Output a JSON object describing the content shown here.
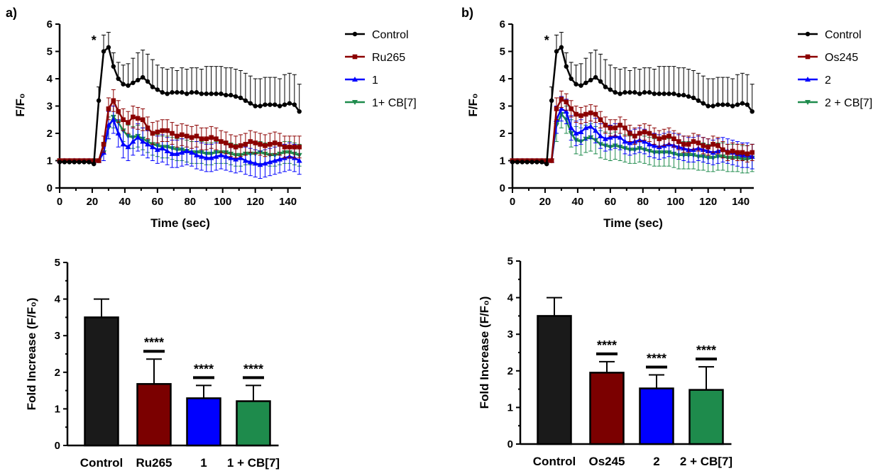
{
  "panels": {
    "a": "a)",
    "b": "b)"
  },
  "chart_data": [
    {
      "type": "line",
      "xlabel": "Time (sec)",
      "ylabel": "F/F₀",
      "xlim": [
        0,
        148
      ],
      "ylim": [
        0,
        6
      ],
      "xticks": [
        "0",
        "20",
        "40",
        "60",
        "80",
        "100",
        "120",
        "140"
      ],
      "yticks": [
        "0",
        "1",
        "2",
        "3",
        "4",
        "5",
        "6"
      ],
      "annotation": {
        "text": "*",
        "x": 21,
        "y": 5.4
      },
      "legend_position": "top-right",
      "x": [
        0,
        3,
        6,
        9,
        12,
        15,
        18,
        21,
        24,
        27,
        30,
        33,
        36,
        39,
        42,
        45,
        48,
        51,
        54,
        57,
        60,
        63,
        66,
        69,
        72,
        75,
        78,
        81,
        84,
        87,
        90,
        93,
        96,
        99,
        102,
        105,
        108,
        111,
        114,
        117,
        120,
        123,
        126,
        129,
        132,
        135,
        138,
        141,
        144,
        147
      ],
      "series": [
        {
          "name": "Control",
          "color": "#000000",
          "marker": "circle",
          "values": [
            0.95,
            0.95,
            0.95,
            0.95,
            0.95,
            0.95,
            0.95,
            0.88,
            3.2,
            5.0,
            5.15,
            4.45,
            4.0,
            3.8,
            3.75,
            3.85,
            3.95,
            4.05,
            3.9,
            3.7,
            3.6,
            3.5,
            3.45,
            3.5,
            3.5,
            3.5,
            3.45,
            3.5,
            3.5,
            3.45,
            3.45,
            3.45,
            3.45,
            3.45,
            3.4,
            3.4,
            3.35,
            3.3,
            3.2,
            3.1,
            3.0,
            3.0,
            3.05,
            3.05,
            3.05,
            3.0,
            3.05,
            3.1,
            3.05,
            2.8
          ],
          "errors": [
            0.1,
            0.1,
            0.1,
            0.1,
            0.1,
            0.1,
            0.1,
            0.1,
            0.5,
            0.6,
            0.55,
            0.5,
            0.6,
            0.7,
            0.8,
            0.9,
            1.0,
            1.0,
            1.0,
            1.0,
            0.9,
            0.9,
            0.9,
            0.9,
            0.8,
            0.9,
            0.9,
            0.9,
            0.9,
            0.9,
            1.0,
            1.0,
            1.0,
            1.0,
            1.0,
            1.0,
            1.0,
            1.0,
            1.0,
            1.0,
            1.0,
            1.0,
            1.0,
            1.0,
            1.0,
            1.0,
            1.1,
            1.1,
            1.1,
            1.0
          ]
        },
        {
          "name": "Ru265",
          "color": "#8B0000",
          "marker": "square",
          "values": [
            1.0,
            1.0,
            1.0,
            1.0,
            1.0,
            1.0,
            1.0,
            1.0,
            1.0,
            1.6,
            2.9,
            3.2,
            2.8,
            2.5,
            2.4,
            2.6,
            2.55,
            2.5,
            2.2,
            2.0,
            2.05,
            2.1,
            2.1,
            2.0,
            1.9,
            1.95,
            1.9,
            1.85,
            1.9,
            1.8,
            1.8,
            1.85,
            1.8,
            1.7,
            1.65,
            1.55,
            1.5,
            1.55,
            1.6,
            1.7,
            1.65,
            1.6,
            1.55,
            1.6,
            1.65,
            1.6,
            1.5,
            1.5,
            1.5,
            1.5
          ],
          "errors": [
            0.05,
            0.05,
            0.05,
            0.05,
            0.05,
            0.05,
            0.05,
            0.05,
            0.1,
            0.3,
            0.4,
            0.4,
            0.4,
            0.4,
            0.4,
            0.4,
            0.4,
            0.4,
            0.4,
            0.4,
            0.4,
            0.4,
            0.4,
            0.4,
            0.4,
            0.4,
            0.4,
            0.4,
            0.4,
            0.4,
            0.4,
            0.4,
            0.4,
            0.4,
            0.4,
            0.4,
            0.4,
            0.4,
            0.4,
            0.4,
            0.4,
            0.4,
            0.4,
            0.4,
            0.4,
            0.4,
            0.4,
            0.4,
            0.4,
            0.4
          ]
        },
        {
          "name": "1",
          "color": "#0000FF",
          "marker": "triangle-up",
          "values": [
            1.0,
            1.0,
            1.0,
            1.0,
            1.0,
            1.0,
            1.0,
            1.0,
            1.0,
            1.3,
            2.3,
            2.5,
            2.0,
            1.6,
            1.5,
            1.7,
            1.85,
            1.7,
            1.6,
            1.5,
            1.4,
            1.45,
            1.35,
            1.25,
            1.25,
            1.3,
            1.35,
            1.3,
            1.2,
            1.15,
            1.1,
            1.1,
            1.15,
            1.2,
            1.15,
            1.1,
            1.05,
            1.1,
            1.0,
            0.95,
            0.9,
            0.85,
            0.9,
            0.95,
            1.0,
            1.05,
            1.1,
            1.15,
            1.1,
            1.0
          ],
          "errors": [
            0.05,
            0.05,
            0.05,
            0.05,
            0.05,
            0.05,
            0.05,
            0.05,
            0.1,
            0.3,
            0.5,
            0.5,
            0.5,
            0.5,
            0.5,
            0.5,
            0.5,
            0.5,
            0.5,
            0.5,
            0.5,
            0.5,
            0.5,
            0.5,
            0.5,
            0.5,
            0.5,
            0.5,
            0.5,
            0.5,
            0.5,
            0.5,
            0.5,
            0.5,
            0.5,
            0.5,
            0.5,
            0.5,
            0.5,
            0.5,
            0.5,
            0.5,
            0.5,
            0.5,
            0.5,
            0.5,
            0.5,
            0.5,
            0.5,
            0.5
          ]
        },
        {
          "name": "1+ CB[7]",
          "color": "#1E8B4C",
          "marker": "triangle-down",
          "values": [
            1.0,
            1.0,
            1.0,
            1.0,
            1.0,
            1.0,
            1.0,
            1.0,
            1.0,
            1.3,
            2.2,
            2.6,
            2.4,
            2.1,
            1.9,
            1.85,
            1.9,
            1.8,
            1.7,
            1.6,
            1.55,
            1.5,
            1.5,
            1.45,
            1.4,
            1.4,
            1.35,
            1.3,
            1.3,
            1.3,
            1.25,
            1.25,
            1.3,
            1.3,
            1.3,
            1.25,
            1.2,
            1.2,
            1.25,
            1.25,
            1.25,
            1.3,
            1.25,
            1.2,
            1.2,
            1.25,
            1.3,
            1.3,
            1.25,
            1.2
          ],
          "errors": [
            0.05,
            0.05,
            0.05,
            0.05,
            0.05,
            0.05,
            0.05,
            0.05,
            0.1,
            0.3,
            0.4,
            0.4,
            0.4,
            0.4,
            0.4,
            0.4,
            0.4,
            0.4,
            0.4,
            0.4,
            0.4,
            0.4,
            0.4,
            0.4,
            0.4,
            0.4,
            0.4,
            0.4,
            0.4,
            0.4,
            0.4,
            0.4,
            0.4,
            0.4,
            0.4,
            0.4,
            0.4,
            0.4,
            0.4,
            0.4,
            0.4,
            0.4,
            0.4,
            0.4,
            0.4,
            0.4,
            0.4,
            0.4,
            0.4,
            0.4
          ]
        }
      ]
    },
    {
      "type": "line",
      "xlabel": "Time (sec)",
      "ylabel": "F/F₀",
      "xlim": [
        0,
        148
      ],
      "ylim": [
        0,
        6
      ],
      "xticks": [
        "0",
        "20",
        "40",
        "60",
        "80",
        "100",
        "120",
        "140"
      ],
      "yticks": [
        "0",
        "1",
        "2",
        "3",
        "4",
        "5",
        "6"
      ],
      "annotation": {
        "text": "*",
        "x": 21,
        "y": 5.4
      },
      "legend_position": "top-right",
      "x": [
        0,
        3,
        6,
        9,
        12,
        15,
        18,
        21,
        24,
        27,
        30,
        33,
        36,
        39,
        42,
        45,
        48,
        51,
        54,
        57,
        60,
        63,
        66,
        69,
        72,
        75,
        78,
        81,
        84,
        87,
        90,
        93,
        96,
        99,
        102,
        105,
        108,
        111,
        114,
        117,
        120,
        123,
        126,
        129,
        132,
        135,
        138,
        141,
        144,
        147
      ],
      "series": [
        {
          "name": "Control",
          "color": "#000000",
          "marker": "circle",
          "values": [
            0.95,
            0.95,
            0.95,
            0.95,
            0.95,
            0.95,
            0.95,
            0.88,
            3.2,
            5.0,
            5.15,
            4.45,
            4.0,
            3.8,
            3.75,
            3.85,
            3.95,
            4.05,
            3.9,
            3.7,
            3.6,
            3.5,
            3.45,
            3.5,
            3.5,
            3.5,
            3.45,
            3.5,
            3.5,
            3.45,
            3.45,
            3.45,
            3.45,
            3.45,
            3.4,
            3.4,
            3.35,
            3.3,
            3.2,
            3.1,
            3.0,
            3.0,
            3.05,
            3.05,
            3.05,
            3.0,
            3.05,
            3.1,
            3.05,
            2.8
          ],
          "errors": [
            0.1,
            0.1,
            0.1,
            0.1,
            0.1,
            0.1,
            0.1,
            0.1,
            0.5,
            0.6,
            0.55,
            0.5,
            0.6,
            0.7,
            0.8,
            0.9,
            1.0,
            1.0,
            1.0,
            1.0,
            0.9,
            0.9,
            0.9,
            0.9,
            0.8,
            0.9,
            0.9,
            0.9,
            0.9,
            0.9,
            1.0,
            1.0,
            1.0,
            1.0,
            1.0,
            1.0,
            1.0,
            1.0,
            1.0,
            1.0,
            1.0,
            1.0,
            1.0,
            1.0,
            1.0,
            1.0,
            1.1,
            1.1,
            1.1,
            1.0
          ]
        },
        {
          "name": "Os245",
          "color": "#8B0000",
          "marker": "square",
          "values": [
            1.0,
            1.0,
            1.0,
            1.0,
            1.0,
            1.0,
            1.0,
            1.0,
            1.0,
            2.9,
            3.25,
            3.15,
            2.9,
            2.7,
            2.65,
            2.7,
            2.75,
            2.7,
            2.5,
            2.3,
            2.2,
            2.2,
            2.3,
            2.2,
            2.0,
            1.9,
            2.0,
            2.05,
            2.0,
            1.9,
            1.8,
            1.85,
            1.9,
            1.8,
            1.7,
            1.6,
            1.6,
            1.7,
            1.65,
            1.55,
            1.5,
            1.6,
            1.55,
            1.4,
            1.3,
            1.35,
            1.3,
            1.3,
            1.25,
            1.3
          ],
          "errors": [
            0.05,
            0.05,
            0.05,
            0.05,
            0.05,
            0.05,
            0.05,
            0.05,
            0.1,
            0.4,
            0.3,
            0.3,
            0.3,
            0.3,
            0.3,
            0.3,
            0.3,
            0.3,
            0.3,
            0.3,
            0.3,
            0.3,
            0.3,
            0.3,
            0.3,
            0.3,
            0.3,
            0.3,
            0.3,
            0.3,
            0.3,
            0.3,
            0.3,
            0.3,
            0.3,
            0.3,
            0.3,
            0.3,
            0.3,
            0.3,
            0.3,
            0.3,
            0.3,
            0.3,
            0.3,
            0.3,
            0.3,
            0.3,
            0.3,
            0.3
          ]
        },
        {
          "name": "2",
          "color": "#0000FF",
          "marker": "triangle-up",
          "values": [
            1.0,
            1.0,
            1.0,
            1.0,
            1.0,
            1.0,
            1.0,
            1.0,
            1.0,
            2.5,
            2.9,
            2.8,
            2.2,
            2.0,
            2.05,
            2.2,
            2.25,
            2.1,
            1.9,
            1.8,
            1.85,
            1.9,
            1.85,
            1.7,
            1.65,
            1.7,
            1.75,
            1.7,
            1.6,
            1.55,
            1.5,
            1.55,
            1.6,
            1.55,
            1.5,
            1.45,
            1.4,
            1.4,
            1.45,
            1.4,
            1.35,
            1.3,
            1.35,
            1.4,
            1.35,
            1.3,
            1.25,
            1.2,
            1.2,
            1.15
          ],
          "errors": [
            0.05,
            0.05,
            0.05,
            0.05,
            0.05,
            0.05,
            0.05,
            0.05,
            0.1,
            0.5,
            0.45,
            0.45,
            0.45,
            0.45,
            0.45,
            0.45,
            0.45,
            0.45,
            0.45,
            0.45,
            0.45,
            0.45,
            0.45,
            0.45,
            0.45,
            0.45,
            0.45,
            0.45,
            0.45,
            0.45,
            0.45,
            0.45,
            0.45,
            0.45,
            0.45,
            0.45,
            0.45,
            0.45,
            0.45,
            0.45,
            0.45,
            0.45,
            0.45,
            0.45,
            0.45,
            0.45,
            0.45,
            0.45,
            0.45,
            0.45
          ]
        },
        {
          "name": "2 + CB[7]",
          "color": "#1E8B4C",
          "marker": "triangle-down",
          "values": [
            1.0,
            1.0,
            1.0,
            1.0,
            1.0,
            1.0,
            1.0,
            1.0,
            1.0,
            2.3,
            2.7,
            2.5,
            2.0,
            1.75,
            1.7,
            1.8,
            1.85,
            1.75,
            1.6,
            1.55,
            1.5,
            1.55,
            1.5,
            1.45,
            1.4,
            1.4,
            1.45,
            1.4,
            1.35,
            1.3,
            1.3,
            1.3,
            1.3,
            1.25,
            1.2,
            1.2,
            1.2,
            1.2,
            1.15,
            1.15,
            1.1,
            1.1,
            1.15,
            1.15,
            1.1,
            1.1,
            1.1,
            1.05,
            1.05,
            1.1
          ],
          "errors": [
            0.05,
            0.05,
            0.05,
            0.05,
            0.05,
            0.05,
            0.05,
            0.05,
            0.1,
            0.6,
            0.5,
            0.5,
            0.5,
            0.5,
            0.5,
            0.5,
            0.5,
            0.5,
            0.5,
            0.5,
            0.5,
            0.5,
            0.5,
            0.5,
            0.5,
            0.5,
            0.5,
            0.5,
            0.5,
            0.5,
            0.5,
            0.5,
            0.5,
            0.5,
            0.5,
            0.5,
            0.5,
            0.5,
            0.5,
            0.5,
            0.5,
            0.5,
            0.5,
            0.5,
            0.5,
            0.5,
            0.5,
            0.5,
            0.5,
            0.5
          ]
        }
      ]
    },
    {
      "type": "bar",
      "ylabel": "Fold Increase (F/F₀)",
      "ylim": [
        0,
        5
      ],
      "yticks": [
        "0",
        "1",
        "2",
        "3",
        "4",
        "5"
      ],
      "categories": [
        "Control",
        "Ru265",
        "1",
        "1 + CB[7]"
      ],
      "values": [
        3.5,
        1.68,
        1.29,
        1.21
      ],
      "errors": [
        0.5,
        0.68,
        0.35,
        0.43
      ],
      "colors": [
        "#1a1a1a",
        "#7B0000",
        "#0000FF",
        "#1E8B4C"
      ],
      "significance": [
        "",
        "****",
        "****",
        "****"
      ]
    },
    {
      "type": "bar",
      "ylabel": "Fold Increase (F/F₀)",
      "ylim": [
        0,
        5
      ],
      "yticks": [
        "0",
        "1",
        "2",
        "3",
        "4",
        "5"
      ],
      "categories": [
        "Control",
        "Os245",
        "2",
        "2 + CB[7]"
      ],
      "values": [
        3.5,
        1.95,
        1.52,
        1.48
      ],
      "errors": [
        0.5,
        0.3,
        0.37,
        0.63
      ],
      "colors": [
        "#1a1a1a",
        "#7B0000",
        "#0000FF",
        "#1E8B4C"
      ],
      "significance": [
        "",
        "****",
        "****",
        "****"
      ]
    }
  ]
}
